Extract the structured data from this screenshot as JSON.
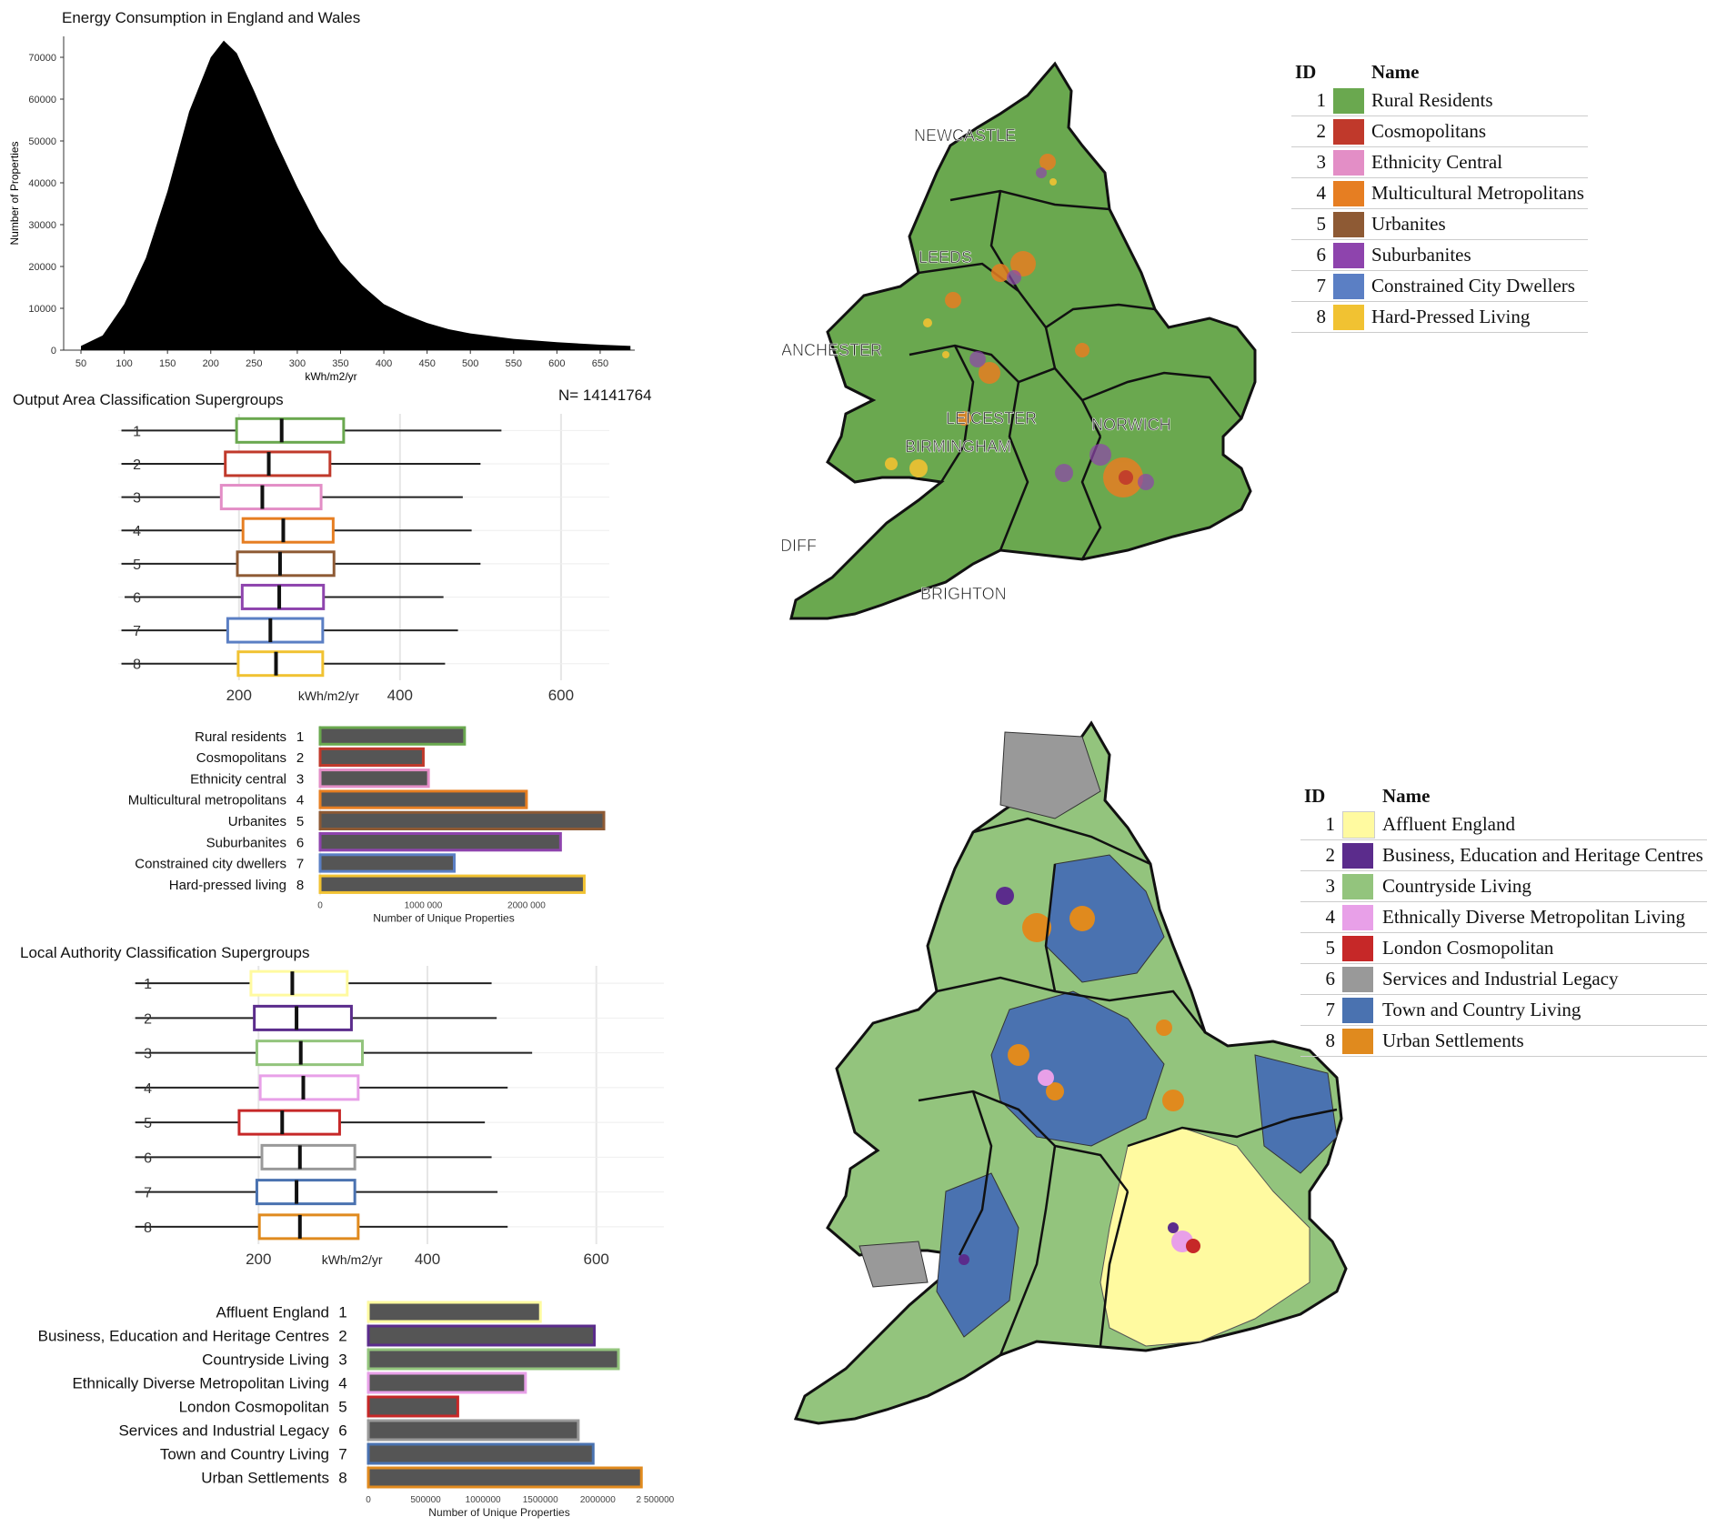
{
  "colors": {
    "rural": "#6aa84f",
    "cosmo": "#c0392b",
    "ethnicity": "#e38ec6",
    "multi": "#e67e22",
    "urbanites": "#8e5a34",
    "suburb": "#8e44ad",
    "constrained": "#5b7fc4",
    "hardpressed": "#f1c232",
    "affluent": "#fffaa0",
    "business": "#5b2c8c",
    "countryside": "#93c47d",
    "ethnic_div": "#e8a0e8",
    "london": "#c62828",
    "services": "#999999",
    "town": "#4a72b0",
    "urban": "#e08a1e"
  },
  "oac_legend": {
    "id_header": "ID",
    "name_header": "Name",
    "items": [
      {
        "id": "1",
        "name": "Rural Residents",
        "color": "#6aa84f"
      },
      {
        "id": "2",
        "name": "Cosmopolitans",
        "color": "#c0392b"
      },
      {
        "id": "3",
        "name": "Ethnicity Central",
        "color": "#e38ec6"
      },
      {
        "id": "4",
        "name": "Multicultural Metropolitans",
        "color": "#e67e22"
      },
      {
        "id": "5",
        "name": "Urbanites",
        "color": "#8e5a34"
      },
      {
        "id": "6",
        "name": "Suburbanites",
        "color": "#8e44ad"
      },
      {
        "id": "7",
        "name": "Constrained City Dwellers",
        "color": "#5b7fc4"
      },
      {
        "id": "8",
        "name": "Hard-Pressed Living",
        "color": "#f1c232"
      }
    ]
  },
  "lac_legend": {
    "id_header": "ID",
    "name_header": "Name",
    "items": [
      {
        "id": "1",
        "name": "Affluent England",
        "color": "#fffaa0"
      },
      {
        "id": "2",
        "name": "Business, Education and Heritage Centres",
        "color": "#5b2c8c"
      },
      {
        "id": "3",
        "name": "Countryside Living",
        "color": "#93c47d"
      },
      {
        "id": "4",
        "name": "Ethnically Diverse Metropolitan Living",
        "color": "#e8a0e8"
      },
      {
        "id": "5",
        "name": "London Cosmopolitan",
        "color": "#c62828"
      },
      {
        "id": "6",
        "name": "Services and Industrial Legacy",
        "color": "#999999"
      },
      {
        "id": "7",
        "name": "Town and Country Living",
        "color": "#4a72b0"
      },
      {
        "id": "8",
        "name": "Urban Settlements",
        "color": "#e08a1e"
      }
    ]
  },
  "map_labels": [
    "NEWCASTLE",
    "LEEDS",
    "MANCHESTER",
    "LEICESTER",
    "NORWICH",
    "BIRMINGHAM",
    "CARDIFF",
    "BRIGHTON"
  ],
  "chart_data": [
    {
      "type": "area",
      "title": "Energy Consumption in England and Wales",
      "xlabel": "kWh/m2/yr",
      "ylabel": "Number of Properties",
      "xlim": [
        30,
        690
      ],
      "ylim": [
        0,
        75000
      ],
      "xticks": [
        "50",
        "100",
        "150",
        "200",
        "250",
        "300",
        "350",
        "400",
        "450",
        "500",
        "550",
        "600",
        "650"
      ],
      "yticks": [
        "0",
        "10000",
        "20000",
        "30000",
        "40000",
        "50000",
        "60000",
        "70000"
      ],
      "x": [
        50,
        75,
        100,
        125,
        150,
        175,
        200,
        215,
        230,
        250,
        275,
        300,
        325,
        350,
        375,
        400,
        425,
        450,
        475,
        500,
        550,
        600,
        650,
        685
      ],
      "y": [
        1000,
        3500,
        11000,
        22000,
        38000,
        57000,
        70000,
        74000,
        71000,
        62000,
        50000,
        39000,
        29000,
        21000,
        15500,
        11000,
        8500,
        6500,
        5000,
        4000,
        2700,
        1900,
        1300,
        1000
      ],
      "note": "N= 14141764"
    },
    {
      "type": "box",
      "title": "Output Area Classification Supergroups",
      "xlabel": "kWh/m2/yr",
      "xticks": [
        "200",
        "400",
        "600"
      ],
      "xlim": [
        50,
        660
      ],
      "categories": [
        "1",
        "2",
        "3",
        "4",
        "5",
        "6",
        "7",
        "8"
      ],
      "series": [
        {
          "min": 54,
          "q1": 197,
          "median": 253,
          "q3": 330,
          "max": 526
        },
        {
          "min": 54,
          "q1": 183,
          "median": 237,
          "q3": 313,
          "max": 500
        },
        {
          "min": 54,
          "q1": 178,
          "median": 229,
          "q3": 302,
          "max": 478
        },
        {
          "min": 54,
          "q1": 205,
          "median": 255,
          "q3": 317,
          "max": 489
        },
        {
          "min": 54,
          "q1": 198,
          "median": 251,
          "q3": 318,
          "max": 500
        },
        {
          "min": 58,
          "q1": 204,
          "median": 250,
          "q3": 305,
          "max": 454
        },
        {
          "min": 54,
          "q1": 186,
          "median": 239,
          "q3": 304,
          "max": 472
        },
        {
          "min": 54,
          "q1": 199,
          "median": 246,
          "q3": 304,
          "max": 456
        }
      ]
    },
    {
      "type": "bar",
      "xlabel": "Number of Unique Properties",
      "xticks": [
        "0",
        "1000 000",
        "2000 000"
      ],
      "xlim": [
        0,
        2750000
      ],
      "categories": [
        "Rural residents",
        "Cosmopolitans",
        "Ethnicity central",
        "Multicultural metropolitans",
        "Urbanites",
        "Suburbanites",
        "Constrained city dwellers",
        "Hard-pressed living"
      ],
      "ids": [
        "1",
        "2",
        "3",
        "4",
        "5",
        "6",
        "7",
        "8"
      ],
      "values": [
        1400000,
        1000000,
        1050000,
        2000000,
        2750000,
        2330000,
        1300000,
        2560000
      ]
    },
    {
      "type": "box",
      "title": "Local Authority Classification Supergroups",
      "xlabel": "kWh/m2/yr",
      "xticks": [
        "200",
        "400",
        "600"
      ],
      "xlim": [
        50,
        680
      ],
      "categories": [
        "1",
        "2",
        "3",
        "4",
        "5",
        "6",
        "7",
        "8"
      ],
      "series": [
        {
          "min": 54,
          "q1": 191,
          "median": 240,
          "q3": 305,
          "max": 476
        },
        {
          "min": 54,
          "q1": 195,
          "median": 245,
          "q3": 310,
          "max": 482
        },
        {
          "min": 54,
          "q1": 198,
          "median": 250,
          "q3": 323,
          "max": 524
        },
        {
          "min": 54,
          "q1": 202,
          "median": 253,
          "q3": 318,
          "max": 495
        },
        {
          "min": 54,
          "q1": 177,
          "median": 228,
          "q3": 296,
          "max": 468
        },
        {
          "min": 54,
          "q1": 204,
          "median": 249,
          "q3": 314,
          "max": 476
        },
        {
          "min": 54,
          "q1": 198,
          "median": 245,
          "q3": 314,
          "max": 483
        },
        {
          "min": 54,
          "q1": 201,
          "median": 249,
          "q3": 318,
          "max": 495
        }
      ]
    },
    {
      "type": "bar",
      "xlabel": "Number of Unique Properties",
      "xticks": [
        "0",
        "500000",
        "1000000",
        "1500000",
        "2000000",
        "2 500000"
      ],
      "xlim": [
        0,
        2600000
      ],
      "categories": [
        "Affluent England",
        "Business, Education and Heritage Centres",
        "Countryside Living",
        "Ethnically Diverse Metropolitan Living",
        "London Cosmopolitan",
        "Services and Industrial Legacy",
        "Town and Country Living",
        "Urban Settlements"
      ],
      "ids": [
        "1",
        "2",
        "3",
        "4",
        "5",
        "6",
        "7",
        "8"
      ],
      "values": [
        1500000,
        1970000,
        2180000,
        1370000,
        780000,
        1830000,
        1960000,
        2380000
      ]
    }
  ]
}
